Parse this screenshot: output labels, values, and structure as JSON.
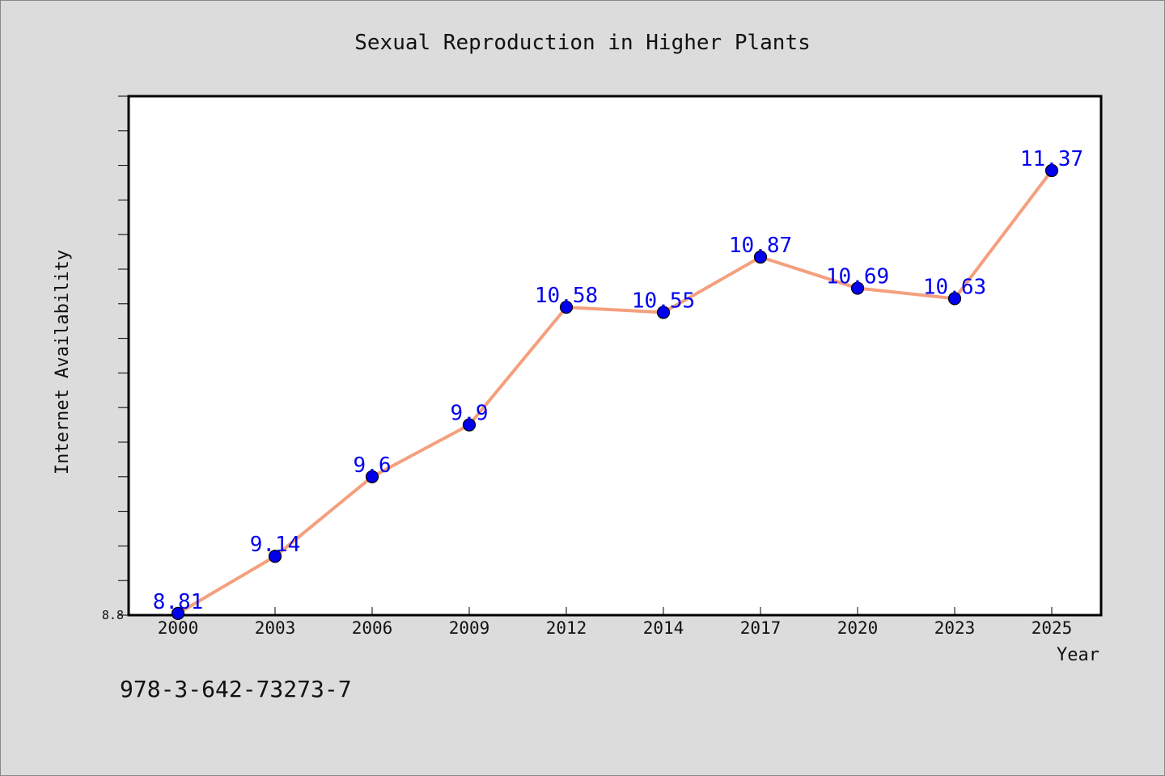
{
  "chart_data": {
    "type": "line",
    "title": "Sexual Reproduction in Higher Plants",
    "xlabel": "Year",
    "ylabel": "Internet Availability",
    "categories": [
      "2000",
      "2003",
      "2006",
      "2009",
      "2012",
      "2014",
      "2017",
      "2020",
      "2023",
      "2025"
    ],
    "series": [
      {
        "values": [
          8.81,
          9.14,
          9.6,
          9.9,
          10.58,
          10.55,
          10.87,
          10.69,
          10.63,
          11.37
        ]
      }
    ],
    "data_labels": [
      "8.81",
      "9.14",
      "9.6",
      "9.9",
      "10.58",
      "10.55",
      "10.87",
      "10.69",
      "10.63",
      "11.37"
    ],
    "ylim": [
      8.8,
      11.8
    ],
    "yticks": [
      8.8
    ],
    "ytick_labels": [
      "8.8"
    ],
    "line_color": "#f4a07e",
    "marker_color": "#0000ee",
    "label_color": "#0000ee",
    "grid": false,
    "legend": "none"
  },
  "caption": "978-3-642-73273-7"
}
